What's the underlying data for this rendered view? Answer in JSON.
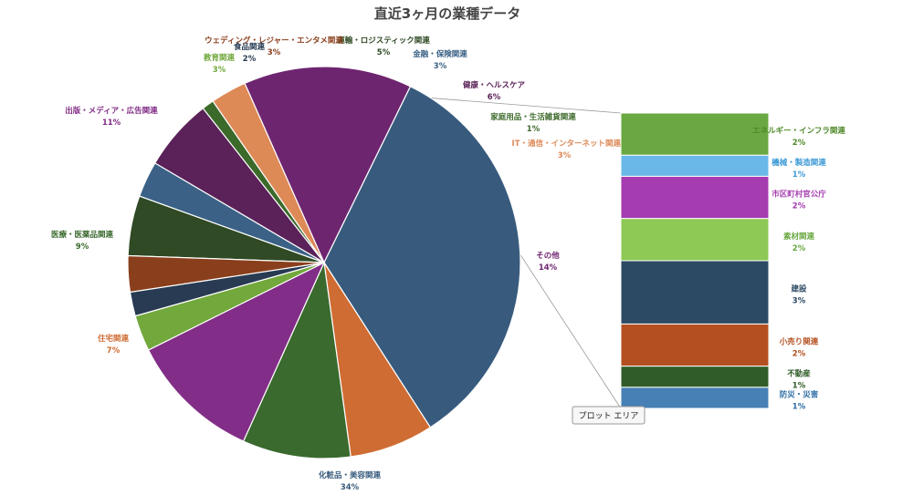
{
  "chart_data": {
    "type": "pie",
    "subtype": "pie-of-bar",
    "title": "直近3ヶ月の業種データ",
    "main": [
      {
        "name": "運輸・ロジスティック関連",
        "pct": "5%",
        "value": 5,
        "color": "#2f4a24"
      },
      {
        "name": "金融・保険関連",
        "pct": "3%",
        "value": 3,
        "color": "#3b6286"
      },
      {
        "name": "健康・ヘルスケア",
        "pct": "6%",
        "value": 6,
        "color": "#5a2258"
      },
      {
        "name": "家庭用品・生活雑貨関連",
        "pct": "1%",
        "value": 1,
        "color": "#3c6a2a"
      },
      {
        "name": "IT・通信・インターネット関連",
        "pct": "3%",
        "value": 3,
        "color": "#dd8a57"
      },
      {
        "name": "その他",
        "pct": "14%",
        "value": 14,
        "color": "#6e2570"
      },
      {
        "name": "化粧品・美容関連",
        "pct": "34%",
        "value": 34,
        "color": "#385b7d"
      },
      {
        "name": "住宅関連",
        "pct": "7%",
        "value": 7,
        "color": "#cf6c33"
      },
      {
        "name": "医療・医薬品関連",
        "pct": "9%",
        "value": 9,
        "color": "#3a6a2e"
      },
      {
        "name": "出版・メディア・広告関連",
        "pct": "11%",
        "value": 11,
        "color": "#822d87"
      },
      {
        "name": "教育関連",
        "pct": "3%",
        "value": 3,
        "color": "#72a83c"
      },
      {
        "name": "食品関連",
        "pct": "2%",
        "value": 2,
        "color": "#283b52"
      },
      {
        "name": "ウェディング・レジャー・エンタメ関連",
        "pct": "3%",
        "value": 3,
        "color": "#8a3f1c"
      }
    ],
    "detail": [
      {
        "name": "エネルギー・インフラ関連",
        "pct": "2%",
        "value": 2,
        "color": "#6aa842"
      },
      {
        "name": "機械・製造関連",
        "pct": "1%",
        "value": 1,
        "color": "#6ab8e8"
      },
      {
        "name": "市区町村官公庁",
        "pct": "2%",
        "value": 2,
        "color": "#a53cb0"
      },
      {
        "name": "素材関連",
        "pct": "2%",
        "value": 2,
        "color": "#8ec855"
      },
      {
        "name": "建設",
        "pct": "3%",
        "value": 3,
        "color": "#2d4a64"
      },
      {
        "name": "小売り関連",
        "pct": "2%",
        "value": 2,
        "color": "#b45020"
      },
      {
        "name": "不動産",
        "pct": "1%",
        "value": 1,
        "color": "#2f5c28"
      },
      {
        "name": "防災・災害",
        "pct": "1%",
        "value": 1,
        "color": "#4680b4"
      }
    ],
    "tooltip": "プロット エリア",
    "legend": "none"
  }
}
